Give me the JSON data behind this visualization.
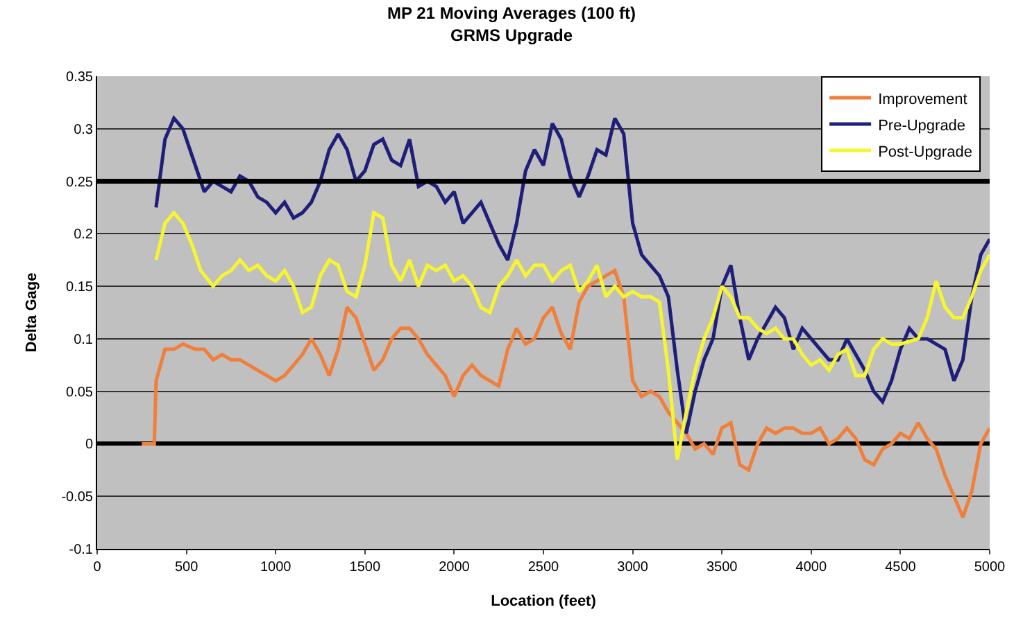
{
  "chart_data": {
    "type": "line",
    "title": "MP 21 Moving Averages (100 ft)",
    "subtitle": "GRMS Upgrade",
    "xlabel": "Location (feet)",
    "ylabel": "Delta Gage",
    "xlim": [
      0,
      5000
    ],
    "xticks": [
      0,
      500,
      1000,
      1500,
      2000,
      2500,
      3000,
      3500,
      4000,
      4500,
      5000
    ],
    "ylim": [
      -0.1,
      0.35
    ],
    "yticks": [
      -0.1,
      -0.05,
      0,
      0.05,
      0.1,
      0.15,
      0.2,
      0.25,
      0.3,
      0.35
    ],
    "grid": "y",
    "legend": "top right",
    "marker": "none",
    "line_style": "solid",
    "ref_lines": [
      {
        "axis": "y",
        "value": 0.25,
        "label": null,
        "color": "#000000"
      }
    ],
    "series": [
      {
        "name": "Improvement",
        "color": "#f07f3c",
        "x": [
          250,
          320,
          330,
          380,
          430,
          480,
          550,
          600,
          650,
          700,
          750,
          800,
          850,
          900,
          950,
          1000,
          1050,
          1100,
          1150,
          1200,
          1250,
          1300,
          1350,
          1400,
          1450,
          1500,
          1550,
          1600,
          1650,
          1700,
          1750,
          1800,
          1850,
          1900,
          1950,
          2000,
          2050,
          2100,
          2150,
          2200,
          2250,
          2300,
          2350,
          2400,
          2450,
          2500,
          2550,
          2600,
          2650,
          2700,
          2750,
          2800,
          2850,
          2900,
          2950,
          3000,
          3050,
          3100,
          3150,
          3200,
          3250,
          3300,
          3350,
          3400,
          3450,
          3500,
          3550,
          3600,
          3650,
          3700,
          3750,
          3800,
          3850,
          3900,
          3950,
          4000,
          4050,
          4100,
          4150,
          4200,
          4250,
          4300,
          4350,
          4400,
          4450,
          4500,
          4550,
          4600,
          4650,
          4700,
          4750,
          4800,
          4850,
          4900,
          4950,
          5000
        ],
        "values": [
          0,
          0,
          0.06,
          0.09,
          0.09,
          0.095,
          0.09,
          0.09,
          0.08,
          0.085,
          0.08,
          0.08,
          0.075,
          0.07,
          0.065,
          0.06,
          0.065,
          0.075,
          0.085,
          0.1,
          0.085,
          0.065,
          0.09,
          0.13,
          0.12,
          0.095,
          0.07,
          0.08,
          0.1,
          0.11,
          0.11,
          0.1,
          0.085,
          0.075,
          0.065,
          0.045,
          0.065,
          0.075,
          0.065,
          0.06,
          0.055,
          0.09,
          0.11,
          0.095,
          0.1,
          0.12,
          0.13,
          0.105,
          0.09,
          0.135,
          0.15,
          0.155,
          0.16,
          0.165,
          0.14,
          0.06,
          0.045,
          0.05,
          0.045,
          0.03,
          0.02,
          0.01,
          -0.005,
          0,
          -0.01,
          0.015,
          0.02,
          -0.02,
          -0.025,
          0,
          0.015,
          0.01,
          0.015,
          0.015,
          0.01,
          0.01,
          0.015,
          0,
          0.005,
          0.015,
          0.005,
          -0.015,
          -0.02,
          -0.005,
          0,
          0.01,
          0.005,
          0.02,
          0.005,
          -0.005,
          -0.03,
          -0.05,
          -0.07,
          -0.045,
          0,
          0.015
        ]
      },
      {
        "name": "Pre-Upgrade",
        "color": "#1f1f7a",
        "x": [
          330,
          380,
          430,
          480,
          520,
          560,
          600,
          650,
          700,
          750,
          800,
          850,
          900,
          950,
          1000,
          1050,
          1100,
          1150,
          1200,
          1250,
          1300,
          1350,
          1400,
          1450,
          1500,
          1550,
          1600,
          1650,
          1700,
          1750,
          1800,
          1850,
          1900,
          1950,
          2000,
          2050,
          2100,
          2150,
          2200,
          2250,
          2300,
          2350,
          2400,
          2450,
          2500,
          2550,
          2600,
          2650,
          2700,
          2750,
          2800,
          2850,
          2900,
          2950,
          3000,
          3050,
          3100,
          3150,
          3200,
          3250,
          3300,
          3350,
          3400,
          3450,
          3500,
          3550,
          3600,
          3650,
          3700,
          3800,
          3850,
          3900,
          3950,
          4000,
          4100,
          4150,
          4200,
          4300,
          4350,
          4400,
          4450,
          4500,
          4550,
          4600,
          4650,
          4750,
          4800,
          4850,
          4900,
          4950,
          5000
        ],
        "values": [
          0.225,
          0.29,
          0.31,
          0.3,
          0.28,
          0.26,
          0.24,
          0.25,
          0.245,
          0.24,
          0.255,
          0.25,
          0.235,
          0.23,
          0.22,
          0.23,
          0.215,
          0.22,
          0.23,
          0.25,
          0.28,
          0.295,
          0.28,
          0.25,
          0.26,
          0.285,
          0.29,
          0.27,
          0.265,
          0.29,
          0.245,
          0.25,
          0.245,
          0.23,
          0.24,
          0.21,
          0.22,
          0.23,
          0.21,
          0.19,
          0.175,
          0.21,
          0.26,
          0.28,
          0.265,
          0.305,
          0.29,
          0.255,
          0.235,
          0.255,
          0.28,
          0.275,
          0.31,
          0.295,
          0.21,
          0.18,
          0.17,
          0.16,
          0.14,
          0.07,
          0.01,
          0.05,
          0.08,
          0.1,
          0.15,
          0.17,
          0.12,
          0.08,
          0.1,
          0.13,
          0.12,
          0.09,
          0.11,
          0.1,
          0.08,
          0.08,
          0.1,
          0.07,
          0.05,
          0.04,
          0.06,
          0.09,
          0.11,
          0.1,
          0.1,
          0.09,
          0.06,
          0.08,
          0.14,
          0.18,
          0.195
        ]
      },
      {
        "name": "Post-Upgrade",
        "color": "#f5f532",
        "x": [
          330,
          380,
          430,
          480,
          530,
          580,
          650,
          700,
          750,
          800,
          850,
          900,
          950,
          1000,
          1050,
          1100,
          1150,
          1200,
          1250,
          1300,
          1350,
          1400,
          1450,
          1500,
          1550,
          1600,
          1650,
          1700,
          1750,
          1800,
          1850,
          1900,
          1950,
          2000,
          2050,
          2100,
          2150,
          2200,
          2250,
          2300,
          2350,
          2400,
          2450,
          2500,
          2550,
          2600,
          2650,
          2700,
          2750,
          2800,
          2850,
          2900,
          2950,
          3000,
          3050,
          3100,
          3150,
          3200,
          3250,
          3300,
          3350,
          3400,
          3450,
          3500,
          3550,
          3600,
          3650,
          3700,
          3750,
          3800,
          3850,
          3900,
          3950,
          4000,
          4050,
          4100,
          4150,
          4200,
          4250,
          4300,
          4350,
          4400,
          4450,
          4500,
          4600,
          4650,
          4700,
          4750,
          4800,
          4850,
          4900,
          4950,
          5000
        ],
        "values": [
          0.175,
          0.21,
          0.22,
          0.21,
          0.19,
          0.165,
          0.15,
          0.16,
          0.165,
          0.175,
          0.165,
          0.17,
          0.16,
          0.155,
          0.165,
          0.15,
          0.125,
          0.13,
          0.16,
          0.175,
          0.17,
          0.145,
          0.14,
          0.17,
          0.22,
          0.215,
          0.17,
          0.155,
          0.175,
          0.15,
          0.17,
          0.165,
          0.17,
          0.155,
          0.16,
          0.15,
          0.13,
          0.125,
          0.15,
          0.16,
          0.175,
          0.16,
          0.17,
          0.17,
          0.155,
          0.165,
          0.17,
          0.145,
          0.155,
          0.17,
          0.14,
          0.15,
          0.14,
          0.145,
          0.14,
          0.14,
          0.135,
          0.07,
          -0.015,
          0.03,
          0.07,
          0.1,
          0.12,
          0.15,
          0.14,
          0.12,
          0.12,
          0.11,
          0.105,
          0.11,
          0.1,
          0.1,
          0.085,
          0.075,
          0.08,
          0.07,
          0.085,
          0.09,
          0.065,
          0.065,
          0.09,
          0.1,
          0.095,
          0.095,
          0.1,
          0.12,
          0.155,
          0.13,
          0.12,
          0.12,
          0.14,
          0.165,
          0.18
        ]
      }
    ]
  }
}
